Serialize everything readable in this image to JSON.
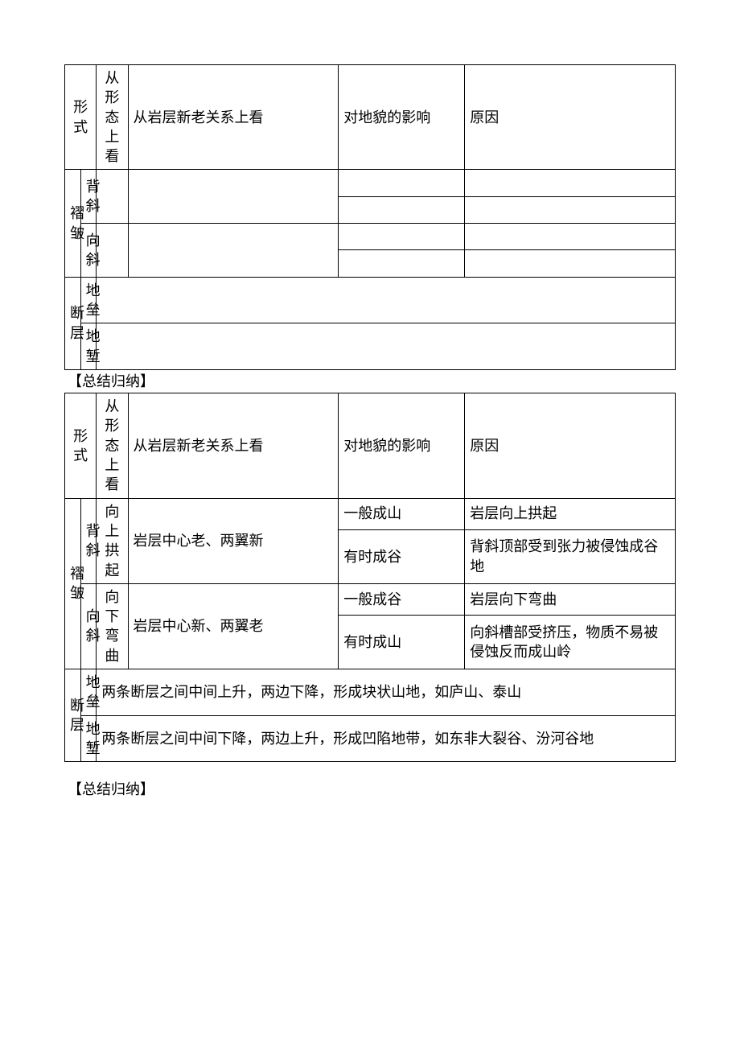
{
  "headers": {
    "form": "形式",
    "morphology": "从形态上看",
    "rock_age": "从岩层新老关系上看",
    "landform_effect": "对地貌的影响",
    "reason": "原因"
  },
  "row_labels": {
    "fold": "褶皱",
    "anticline": "背斜",
    "syncline": "向斜",
    "fault": "断层",
    "horst": "地垒",
    "graben": "地堑"
  },
  "summary_label": "【总结归纳】",
  "table2": {
    "anticline": {
      "morphology": "向上拱起",
      "rock_age": "岩层中心老、两翼新",
      "effect1": "一般成山",
      "reason1": "岩层向上拱起",
      "effect2": "有时成谷",
      "reason2": "背斜顶部受到张力被侵蚀成谷地"
    },
    "syncline": {
      "morphology": "向下弯曲",
      "rock_age": "岩层中心新、两翼老",
      "effect1": "一般成谷",
      "reason1": "岩层向下弯曲",
      "effect2": "有时成山",
      "reason2": "向斜槽部受挤压，物质不易被侵蚀反而成山岭"
    },
    "horst": "两条断层之间中间上升，两边下降，形成块状山地，如庐山、泰山",
    "graben": "两条断层之间中间下降，两边上升，形成凹陷地带，如东非大裂谷、汾河谷地"
  }
}
